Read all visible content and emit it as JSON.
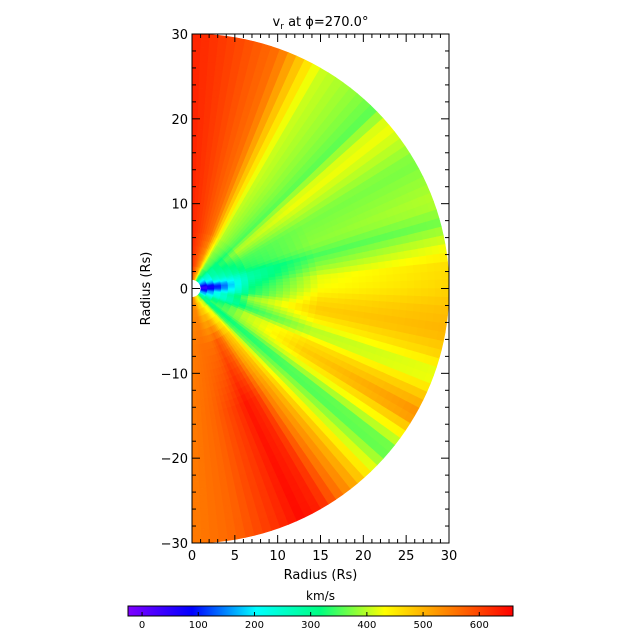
{
  "chart_data": {
    "type": "heatmap",
    "title_prefix": "v",
    "title_subscript": "r",
    "title_suffix": " at ϕ=270.0°",
    "xlabel": "Radius (Rs)",
    "ylabel": "Radius (Rs)",
    "xlim": [
      0,
      30
    ],
    "ylim": [
      -30,
      30
    ],
    "x_ticks": [
      "0",
      "5",
      "10",
      "15",
      "20",
      "25",
      "30"
    ],
    "y_ticks": [
      "−30",
      "−20",
      "−10",
      "0",
      "10",
      "20",
      "30"
    ],
    "inner_radius": 1,
    "outer_radius": 30,
    "colorbar": {
      "label": "km/s",
      "range": [
        -25,
        660
      ],
      "ticks": [
        "0",
        "100",
        "200",
        "300",
        "400",
        "500",
        "600"
      ],
      "tick_values": [
        0,
        100,
        200,
        300,
        400,
        500,
        600
      ],
      "colors": [
        "#8000ff",
        "#0000ff",
        "#00ffff",
        "#00ff80",
        "#ffff00",
        "#ff8000",
        "#ff0000"
      ]
    },
    "velocity_profile": {
      "latitude_deg": [
        90,
        80,
        70,
        60,
        50,
        45,
        40,
        30,
        20,
        15,
        10,
        5,
        0,
        -5,
        -10,
        -15,
        -20,
        -25,
        -30,
        -35,
        -40,
        -45,
        -50,
        -55,
        -60,
        -65,
        -70,
        -80,
        -90
      ],
      "radius_rs": [
        1,
        3,
        7,
        15,
        30
      ],
      "vr_kms": [
        [
          600,
          620,
          630,
          630,
          630
        ],
        [
          540,
          580,
          600,
          600,
          600
        ],
        [
          480,
          520,
          560,
          560,
          560
        ],
        [
          330,
          370,
          400,
          410,
          410
        ],
        [
          300,
          340,
          370,
          380,
          380
        ],
        [
          240,
          300,
          350,
          360,
          360
        ],
        [
          200,
          290,
          400,
          430,
          430
        ],
        [
          150,
          280,
          350,
          370,
          370
        ],
        [
          100,
          240,
          330,
          380,
          400
        ],
        [
          80,
          200,
          290,
          350,
          370
        ],
        [
          50,
          140,
          280,
          380,
          420
        ],
        [
          30,
          100,
          300,
          420,
          460
        ],
        [
          20,
          110,
          320,
          430,
          470
        ],
        [
          40,
          160,
          330,
          460,
          490
        ],
        [
          70,
          220,
          390,
          480,
          500
        ],
        [
          100,
          220,
          360,
          440,
          470
        ],
        [
          150,
          240,
          330,
          390,
          410
        ],
        [
          140,
          300,
          400,
          460,
          480
        ],
        [
          200,
          320,
          400,
          480,
          540
        ],
        [
          260,
          340,
          380,
          420,
          440
        ],
        [
          280,
          300,
          320,
          340,
          350
        ],
        [
          300,
          330,
          360,
          400,
          420
        ],
        [
          380,
          420,
          470,
          490,
          500
        ],
        [
          390,
          430,
          500,
          540,
          560
        ],
        [
          410,
          460,
          560,
          620,
          630
        ],
        [
          450,
          480,
          580,
          640,
          650
        ],
        [
          460,
          490,
          560,
          610,
          620
        ],
        [
          520,
          540,
          560,
          570,
          570
        ],
        [
          540,
          540,
          550,
          550,
          550
        ]
      ]
    }
  }
}
